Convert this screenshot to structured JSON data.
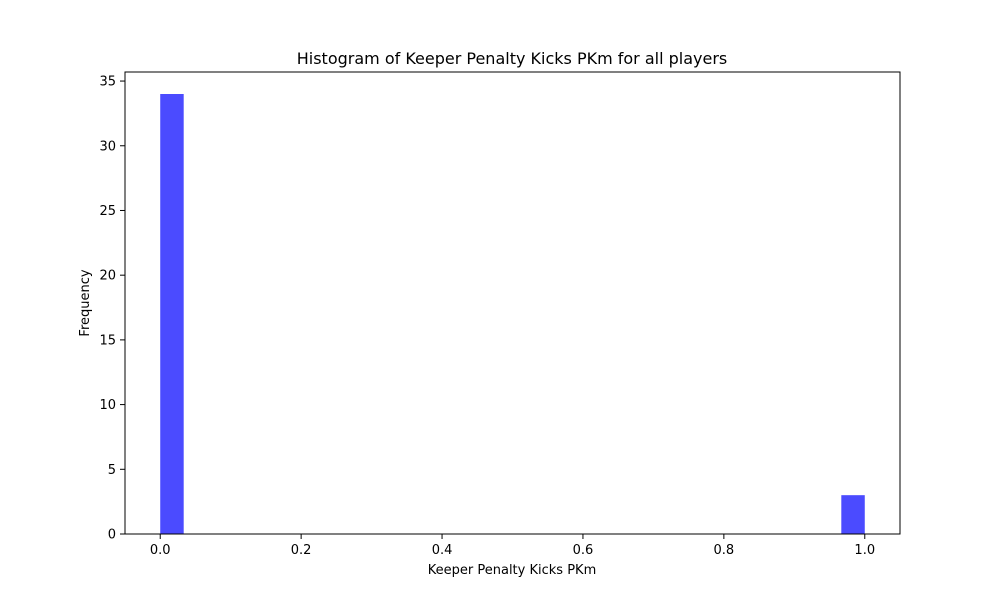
{
  "chart_data": {
    "type": "bar",
    "title": "Histogram of Keeper Penalty Kicks PKm for all players",
    "xlabel": "Keeper Penalty Kicks PKm",
    "ylabel": "Frequency",
    "xlim": [
      -0.05,
      1.05
    ],
    "ylim": [
      0,
      35.7
    ],
    "xticks": [
      0.0,
      0.2,
      0.4,
      0.6,
      0.8,
      1.0
    ],
    "xtick_labels": [
      "0.0",
      "0.2",
      "0.4",
      "0.6",
      "0.8",
      "1.0"
    ],
    "yticks": [
      0,
      5,
      10,
      15,
      20,
      25,
      30,
      35
    ],
    "ytick_labels": [
      "0",
      "5",
      "10",
      "15",
      "20",
      "25",
      "30",
      "35"
    ],
    "bins": [
      {
        "x0": 0.0,
        "x1": 0.0333,
        "count": 34
      },
      {
        "x0": 0.9667,
        "x1": 1.0,
        "count": 3
      }
    ],
    "bar_color": "#4b4bff",
    "grid": false,
    "legend": "none"
  }
}
